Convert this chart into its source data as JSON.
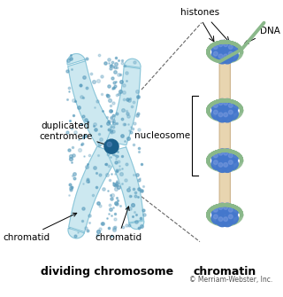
{
  "bg_color": "#ffffff",
  "title_left": "dividing chromosome",
  "title_right": "chromatin",
  "label_centromere": "duplicated\ncentromere",
  "label_chromatid_left": "chromatid",
  "label_chromatid_right": "chromatid",
  "label_histones": "histones",
  "label_dna": "DNA",
  "label_nucleosome": "nucleosome",
  "label_copyright": "© Merriam-Webster, Inc.",
  "chrom_fill": "#cce8f0",
  "chrom_edge": "#88c4d8",
  "chrom_spot": "#5599bb",
  "centromere_color": "#1a5f8a",
  "centromere_hi": "#5588bb",
  "helix_color": "#8ab88a",
  "sphere_color": "#4477cc",
  "sphere_hi": "#7799dd",
  "linker_color": "#e8d5b0",
  "linker_edge": "#c8aa80",
  "dash_color": "#666666",
  "text_fs": 7.5,
  "title_fs": 9,
  "copy_fs": 5.5
}
